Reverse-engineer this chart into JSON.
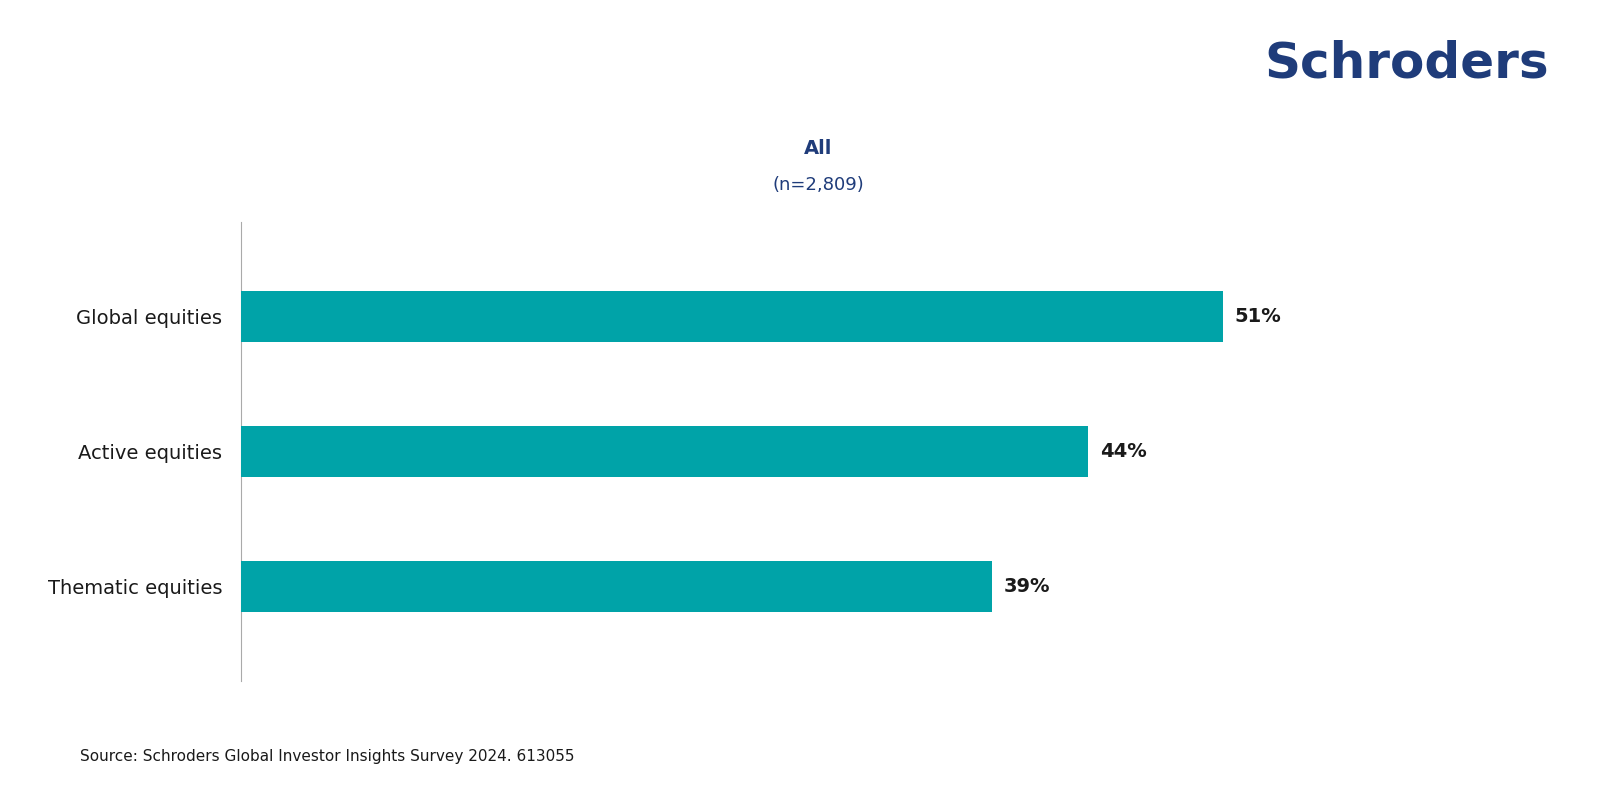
{
  "categories": [
    "Thematic equities",
    "Active equities",
    "Global equities"
  ],
  "values": [
    39,
    44,
    51
  ],
  "bar_color": "#00A3A8",
  "label_color": "#1a1a1a",
  "title_line1": "All",
  "title_line2": "(n=2,809)",
  "title_color": "#1F3C7A",
  "title_fontsize": 14,
  "subtitle_color": "#1F3C7A",
  "subtitle_fontsize": 13,
  "bar_label_fontsize": 14,
  "ytick_fontsize": 14,
  "source_text": "Source: Schroders Global Investor Insights Survey 2024. 613055",
  "source_fontsize": 11,
  "schroders_text": "Schroders",
  "schroders_color": "#1F3C7A",
  "schroders_fontsize": 36,
  "xlim": [
    0,
    60
  ],
  "background_color": "#ffffff",
  "bar_height": 0.38
}
